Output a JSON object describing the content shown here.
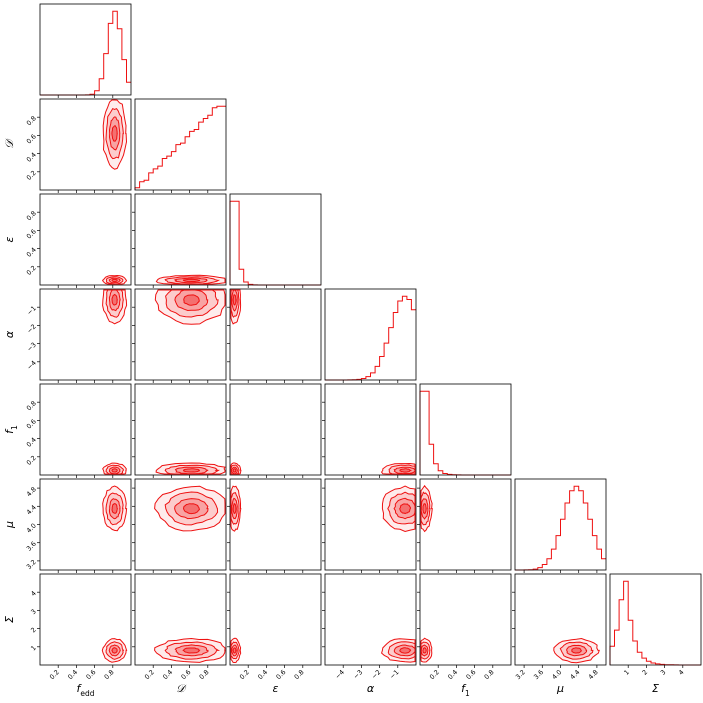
{
  "chart_data": {
    "type": "corner",
    "accent_color": "#ee1111",
    "parameters": [
      {
        "key": "fedd",
        "label": "f",
        "label_sub": "edd",
        "range": [
          0,
          1
        ],
        "ticks": [
          0.2,
          0.4,
          0.6,
          0.8
        ],
        "tick_labels": [
          "0.2",
          "0.4",
          "0.6",
          "0.8"
        ],
        "hist_type": "peak",
        "hist_center": 0.82,
        "hist_width": 0.08
      },
      {
        "key": "D",
        "label": "𝒟",
        "label_sub": "",
        "range": [
          0,
          1
        ],
        "ticks": [
          0.2,
          0.4,
          0.6,
          0.8
        ],
        "tick_labels": [
          "0.2",
          "0.4",
          "0.6",
          "0.8"
        ],
        "hist_type": "ramp",
        "hist_center": 0.8,
        "hist_width": 0.3
      },
      {
        "key": "eps",
        "label": "ε",
        "label_sub": "",
        "range": [
          0,
          1
        ],
        "ticks": [
          0.2,
          0.4,
          0.6,
          0.8
        ],
        "tick_labels": [
          "0.2",
          "0.4",
          "0.6",
          "0.8"
        ],
        "hist_type": "spike",
        "hist_center": 0.05,
        "hist_width": 0.03
      },
      {
        "key": "alpha",
        "label": "α",
        "label_sub": "",
        "range": [
          -5,
          0
        ],
        "ticks": [
          -4,
          -3,
          -2,
          -1
        ],
        "tick_labels": [
          "−4",
          "−3",
          "−2",
          "−1"
        ],
        "hist_type": "rising",
        "hist_center": -0.6,
        "hist_width": 0.8
      },
      {
        "key": "f1",
        "label": "f",
        "label_sub": "1",
        "range": [
          0,
          1
        ],
        "ticks": [
          0.2,
          0.4,
          0.6,
          0.8
        ],
        "tick_labels": [
          "0.2",
          "0.4",
          "0.6",
          "0.8"
        ],
        "hist_type": "spike",
        "hist_center": 0.05,
        "hist_width": 0.05
      },
      {
        "key": "mu",
        "label": "μ",
        "label_sub": "",
        "range": [
          3.0,
          5.0
        ],
        "ticks": [
          3.2,
          3.6,
          4.0,
          4.4,
          4.8
        ],
        "tick_labels": [
          "3.2",
          "3.6",
          "4.0",
          "4.4",
          "4.8"
        ],
        "hist_type": "peak",
        "hist_center": 4.35,
        "hist_width": 0.3
      },
      {
        "key": "Sigma",
        "label": "Σ",
        "label_sub": "",
        "range": [
          0,
          5
        ],
        "ticks": [
          1,
          2,
          3,
          4
        ],
        "tick_labels": [
          "1",
          "2",
          "3",
          "4"
        ],
        "hist_type": "spike",
        "hist_center": 0.8,
        "hist_width": 0.4
      }
    ]
  }
}
